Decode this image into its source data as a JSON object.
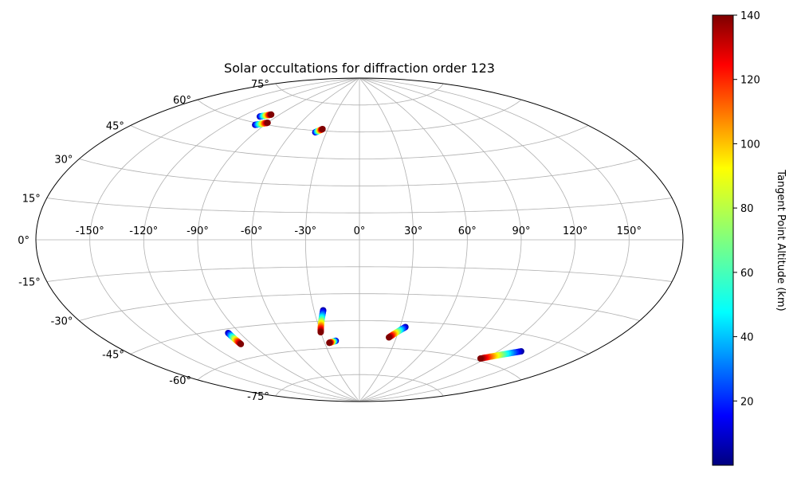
{
  "chart_data": {
    "type": "scatter",
    "projection": "aitoff",
    "title": "Solar occultations for diffraction order 123",
    "xlabel": "",
    "ylabel": "",
    "lon_ticks": [
      "-150°",
      "-120°",
      "-90°",
      "-60°",
      "-30°",
      "0°",
      "30°",
      "60°",
      "90°",
      "120°",
      "150°"
    ],
    "lat_ticks": [
      "75°",
      "60°",
      "45°",
      "30°",
      "15°",
      "0°",
      "-15°",
      "-30°",
      "-45°",
      "-60°",
      "-75°"
    ],
    "grid": true,
    "colormap": "jet",
    "colorbar": {
      "label": "Tangent Point Altitude (km)",
      "range": [
        0,
        140
      ],
      "ticks": [
        "20",
        "40",
        "60",
        "80",
        "100",
        "120",
        "140"
      ]
    },
    "tracks": [
      {
        "lon": [
          -105,
          -98
        ],
        "lat": [
          63,
          65
        ],
        "alt": [
          5,
          140
        ]
      },
      {
        "lon": [
          -98,
          -90
        ],
        "lat": [
          59,
          61
        ],
        "alt": [
          5,
          140
        ]
      },
      {
        "lon": [
          -40,
          -35
        ],
        "lat": [
          59,
          61
        ],
        "alt": [
          5,
          140
        ]
      },
      {
        "lon": [
          -98,
          -98
        ],
        "lat": [
          -47,
          -53
        ],
        "alt": [
          5,
          140
        ]
      },
      {
        "lon": [
          -24,
          -30
        ],
        "lat": [
          -39,
          -51
        ],
        "alt": [
          5,
          140
        ]
      },
      {
        "lon": [
          -20,
          -26
        ],
        "lat": [
          -56,
          -57
        ],
        "alt": [
          5,
          140
        ]
      },
      {
        "lon": [
          34,
          24
        ],
        "lat": [
          -48,
          -54
        ],
        "alt": [
          5,
          140
        ]
      },
      {
        "lon": [
          136,
          116
        ],
        "lat": [
          -52,
          -59
        ],
        "alt": [
          5,
          140
        ]
      }
    ]
  }
}
